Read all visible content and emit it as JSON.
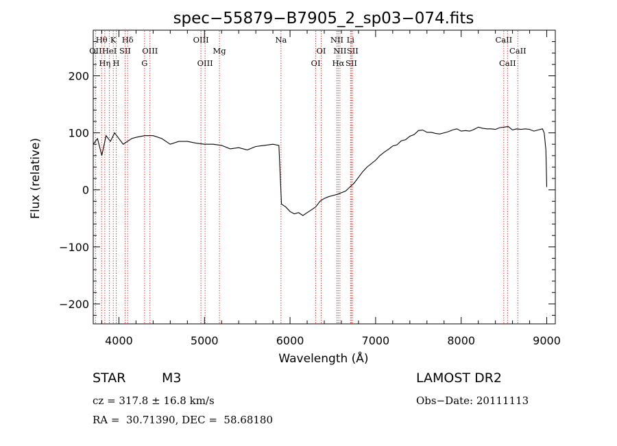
{
  "chart_data": {
    "type": "line",
    "title": "spec−55879−B7905_2_sp03−074.fits",
    "xlabel": "Wavelength (Å)",
    "ylabel": "Flux (relative)",
    "xlim": [
      3700,
      9100
    ],
    "ylim": [
      -235,
      280
    ],
    "x_ticks": [
      4000,
      5000,
      6000,
      7000,
      8000,
      9000
    ],
    "y_ticks": [
      -200,
      -100,
      0,
      100,
      200
    ],
    "grid": false,
    "line_color": "#000000",
    "marker_color": "#d01010",
    "series": [
      {
        "x": [
          3700,
          3750,
          3800,
          3850,
          3900,
          3950,
          4000,
          4050,
          4100,
          4150,
          4200,
          4300,
          4400,
          4500,
          4600,
          4700,
          4800,
          4900,
          5000,
          5100,
          5200,
          5300,
          5400,
          5500,
          5600,
          5700,
          5800,
          5870,
          5900,
          5950,
          6000,
          6050,
          6100,
          6150,
          6200,
          6250,
          6300,
          6350,
          6400,
          6450,
          6500,
          6550,
          6600,
          6650,
          6700,
          6750,
          6800,
          6850,
          6900,
          6950,
          7000,
          7050,
          7100,
          7150,
          7200,
          7250,
          7300,
          7350,
          7400,
          7450,
          7500,
          7550,
          7600,
          7650,
          7700,
          7750,
          7800,
          7850,
          7900,
          7950,
          8000,
          8050,
          8100,
          8150,
          8200,
          8250,
          8300,
          8350,
          8400,
          8450,
          8500,
          8550,
          8600,
          8650,
          8700,
          8750,
          8800,
          8850,
          8900,
          8950,
          8970,
          8990,
          9000
        ],
        "y": [
          80,
          90,
          60,
          95,
          85,
          100,
          90,
          80,
          85,
          90,
          92,
          95,
          95,
          90,
          80,
          85,
          85,
          82,
          80,
          80,
          78,
          72,
          74,
          70,
          76,
          78,
          80,
          78,
          -25,
          -30,
          -38,
          -42,
          -40,
          -45,
          -40,
          -35,
          -30,
          -20,
          -15,
          -12,
          -10,
          -8,
          -5,
          -2,
          5,
          12,
          22,
          32,
          40,
          46,
          52,
          60,
          66,
          71,
          77,
          79,
          86,
          88,
          94,
          97,
          104,
          105,
          101,
          101,
          99,
          98,
          100,
          102,
          105,
          107,
          103,
          104,
          103,
          106,
          110,
          108,
          107,
          107,
          106,
          109,
          110,
          111,
          105,
          107,
          106,
          107,
          106,
          103,
          105,
          107,
          100,
          70,
          5
        ]
      }
    ],
    "spectral_lines": [
      {
        "label": "OII",
        "wavelength": 3727,
        "row": 2
      },
      {
        "label": "Hθ",
        "wavelength": 3798,
        "row": 1
      },
      {
        "label": "Hη",
        "wavelength": 3835,
        "row": 3
      },
      {
        "label": "HeI",
        "wavelength": 3889,
        "row": 2
      },
      {
        "label": "K",
        "wavelength": 3934,
        "row": 1
      },
      {
        "label": "H",
        "wavelength": 3969,
        "row": 3
      },
      {
        "label": "SII",
        "wavelength": 4072,
        "row": 2
      },
      {
        "label": "Hδ",
        "wavelength": 4102,
        "row": 1
      },
      {
        "label": "G",
        "wavelength": 4300,
        "row": 3
      },
      {
        "label": "OIII",
        "wavelength": 4363,
        "row": 2
      },
      {
        "label": "OIII",
        "wavelength": 4959,
        "row": 1
      },
      {
        "label": "OIII",
        "wavelength": 5007,
        "row": 3
      },
      {
        "label": "Mg",
        "wavelength": 5175,
        "row": 2
      },
      {
        "label": "Na",
        "wavelength": 5894,
        "row": 1
      },
      {
        "label": "OI",
        "wavelength": 6300,
        "row": 3
      },
      {
        "label": "OI",
        "wavelength": 6364,
        "row": 2
      },
      {
        "label": "NII",
        "wavelength": 6548,
        "row": 1
      },
      {
        "label": "Hα",
        "wavelength": 6563,
        "row": 3
      },
      {
        "label": "NII",
        "wavelength": 6583,
        "row": 2
      },
      {
        "label": "Li",
        "wavelength": 6707,
        "row": 1
      },
      {
        "label": "SII",
        "wavelength": 6716,
        "row": 3
      },
      {
        "label": "SII",
        "wavelength": 6731,
        "row": 2
      },
      {
        "label": "CaII",
        "wavelength": 8498,
        "row": 1
      },
      {
        "label": "CaII",
        "wavelength": 8542,
        "row": 3
      },
      {
        "label": "CaII",
        "wavelength": 8662,
        "row": 2
      }
    ]
  },
  "footer": {
    "object_class": "STAR",
    "subclass": "M3",
    "survey": "LAMOST DR2",
    "redshift": "cz = 317.8 ± 16.8 km/s",
    "obs_date": "Obs−Date: 20111113",
    "coords": "RA =  30.71390, DEC =  58.68180"
  }
}
